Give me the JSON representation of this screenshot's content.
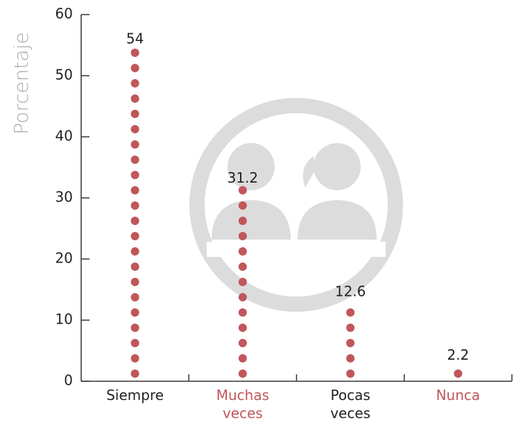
{
  "chart_data": {
    "type": "dot-column",
    "ylabel": "Porcentaje",
    "categories": [
      "Siempre",
      "Muchas veces",
      "Pocas veces",
      "Nunca"
    ],
    "category_colors": [
      "#222222",
      "#c0575a",
      "#222222",
      "#c0575a"
    ],
    "values": [
      54,
      31.2,
      12.6,
      2.2
    ],
    "color": "#c0575a",
    "ylim": [
      0,
      60
    ],
    "yticks": [
      0,
      10,
      20,
      30,
      40,
      50,
      60
    ],
    "grid": false
  }
}
